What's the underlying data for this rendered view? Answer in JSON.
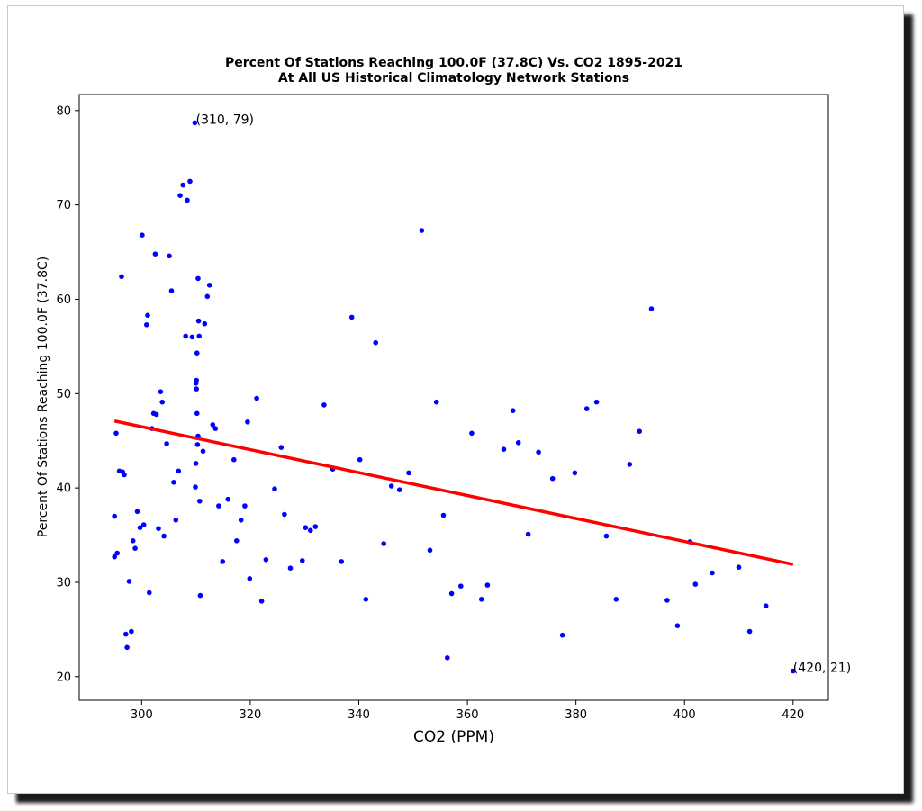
{
  "chart_data": {
    "type": "scatter",
    "title": "Percent Of Stations Reaching 100.0F (37.8C) Vs. CO2 1895-2021",
    "subtitle": "At All US Historical Climatology Network Stations",
    "xlabel": "CO2 (PPM)",
    "ylabel": "Percent Of Stations Reaching 100.0F (37.8C)",
    "xlim": [
      288.5,
      426.5
    ],
    "ylim": [
      17.5,
      81.7
    ],
    "xticks": [
      300,
      320,
      340,
      360,
      380,
      400,
      420
    ],
    "yticks": [
      20,
      30,
      40,
      50,
      60,
      70,
      80
    ],
    "grid": false,
    "point_color": "#0000ff",
    "trend_color": "#ff0000",
    "points": [
      [
        295.0,
        37.0
      ],
      [
        295.0,
        32.7
      ],
      [
        295.3,
        45.8
      ],
      [
        295.5,
        33.1
      ],
      [
        295.9,
        41.8
      ],
      [
        296.3,
        62.4
      ],
      [
        296.5,
        41.7
      ],
      [
        296.8,
        41.4
      ],
      [
        297.1,
        24.5
      ],
      [
        297.3,
        23.1
      ],
      [
        297.7,
        30.1
      ],
      [
        298.1,
        24.8
      ],
      [
        298.4,
        34.4
      ],
      [
        298.8,
        33.6
      ],
      [
        299.2,
        37.5
      ],
      [
        299.7,
        35.8
      ],
      [
        300.1,
        66.8
      ],
      [
        300.4,
        36.1
      ],
      [
        300.9,
        57.3
      ],
      [
        301.1,
        58.3
      ],
      [
        301.4,
        28.9
      ],
      [
        301.9,
        46.3
      ],
      [
        302.2,
        47.9
      ],
      [
        302.5,
        64.8
      ],
      [
        302.7,
        47.8
      ],
      [
        303.1,
        35.7
      ],
      [
        303.5,
        50.2
      ],
      [
        303.8,
        49.1
      ],
      [
        304.1,
        34.9
      ],
      [
        304.6,
        44.7
      ],
      [
        305.1,
        64.6
      ],
      [
        305.5,
        60.9
      ],
      [
        305.9,
        40.6
      ],
      [
        306.3,
        36.6
      ],
      [
        306.8,
        41.8
      ],
      [
        307.1,
        71.0
      ],
      [
        307.6,
        72.1
      ],
      [
        308.1,
        56.1
      ],
      [
        308.4,
        70.5
      ],
      [
        308.9,
        72.5
      ],
      [
        309.3,
        56.0
      ],
      [
        309.8,
        78.7
      ],
      [
        309.9,
        40.1
      ],
      [
        310.0,
        42.6
      ],
      [
        310.0,
        51.1
      ],
      [
        310.1,
        50.5
      ],
      [
        310.1,
        51.4
      ],
      [
        310.2,
        54.3
      ],
      [
        310.2,
        47.9
      ],
      [
        310.3,
        44.6
      ],
      [
        310.4,
        45.5
      ],
      [
        310.4,
        62.2
      ],
      [
        310.5,
        57.7
      ],
      [
        310.6,
        56.1
      ],
      [
        310.7,
        38.6
      ],
      [
        310.8,
        28.6
      ],
      [
        311.3,
        43.9
      ],
      [
        311.6,
        57.4
      ],
      [
        312.1,
        60.3
      ],
      [
        312.5,
        61.5
      ],
      [
        313.1,
        46.7
      ],
      [
        313.6,
        46.3
      ],
      [
        314.2,
        38.1
      ],
      [
        314.9,
        32.2
      ],
      [
        315.9,
        38.8
      ],
      [
        317.0,
        43.0
      ],
      [
        317.5,
        34.4
      ],
      [
        318.3,
        36.6
      ],
      [
        319.0,
        38.1
      ],
      [
        319.5,
        47.0
      ],
      [
        319.9,
        30.4
      ],
      [
        321.2,
        49.5
      ],
      [
        322.1,
        28.0
      ],
      [
        322.9,
        32.4
      ],
      [
        324.5,
        39.9
      ],
      [
        325.7,
        44.3
      ],
      [
        326.3,
        37.2
      ],
      [
        327.4,
        31.5
      ],
      [
        329.6,
        32.3
      ],
      [
        330.2,
        35.8
      ],
      [
        331.1,
        35.5
      ],
      [
        332.0,
        35.9
      ],
      [
        333.6,
        48.8
      ],
      [
        335.2,
        42.0
      ],
      [
        336.8,
        32.2
      ],
      [
        338.7,
        58.1
      ],
      [
        340.2,
        43.0
      ],
      [
        341.3,
        28.2
      ],
      [
        343.1,
        55.4
      ],
      [
        344.6,
        34.1
      ],
      [
        346.0,
        40.2
      ],
      [
        347.5,
        39.8
      ],
      [
        349.2,
        41.6
      ],
      [
        351.6,
        67.3
      ],
      [
        353.1,
        33.4
      ],
      [
        354.3,
        49.1
      ],
      [
        355.6,
        37.1
      ],
      [
        356.3,
        22.0
      ],
      [
        357.1,
        28.8
      ],
      [
        358.8,
        29.6
      ],
      [
        360.8,
        45.8
      ],
      [
        362.6,
        28.2
      ],
      [
        363.7,
        29.7
      ],
      [
        366.7,
        44.1
      ],
      [
        368.4,
        48.2
      ],
      [
        369.4,
        44.8
      ],
      [
        371.2,
        35.1
      ],
      [
        373.1,
        43.8
      ],
      [
        375.7,
        41.0
      ],
      [
        377.5,
        24.4
      ],
      [
        379.8,
        41.6
      ],
      [
        382.0,
        48.4
      ],
      [
        383.8,
        49.1
      ],
      [
        385.6,
        34.9
      ],
      [
        387.4,
        28.2
      ],
      [
        389.9,
        42.5
      ],
      [
        391.7,
        46.0
      ],
      [
        393.9,
        59.0
      ],
      [
        396.8,
        28.1
      ],
      [
        398.7,
        25.4
      ],
      [
        401.0,
        34.3
      ],
      [
        402.0,
        29.8
      ],
      [
        405.1,
        31.0
      ],
      [
        410.0,
        31.6
      ],
      [
        412.0,
        24.8
      ],
      [
        415.0,
        27.5
      ],
      [
        420.0,
        20.6
      ]
    ],
    "trend_line": [
      [
        295,
        47.1
      ],
      [
        420,
        31.9
      ]
    ],
    "annotations": [
      {
        "text": "(310, 79)",
        "x": 310,
        "y": 78.7
      },
      {
        "text": "(420, 21)",
        "x": 420,
        "y": 20.6
      }
    ]
  }
}
